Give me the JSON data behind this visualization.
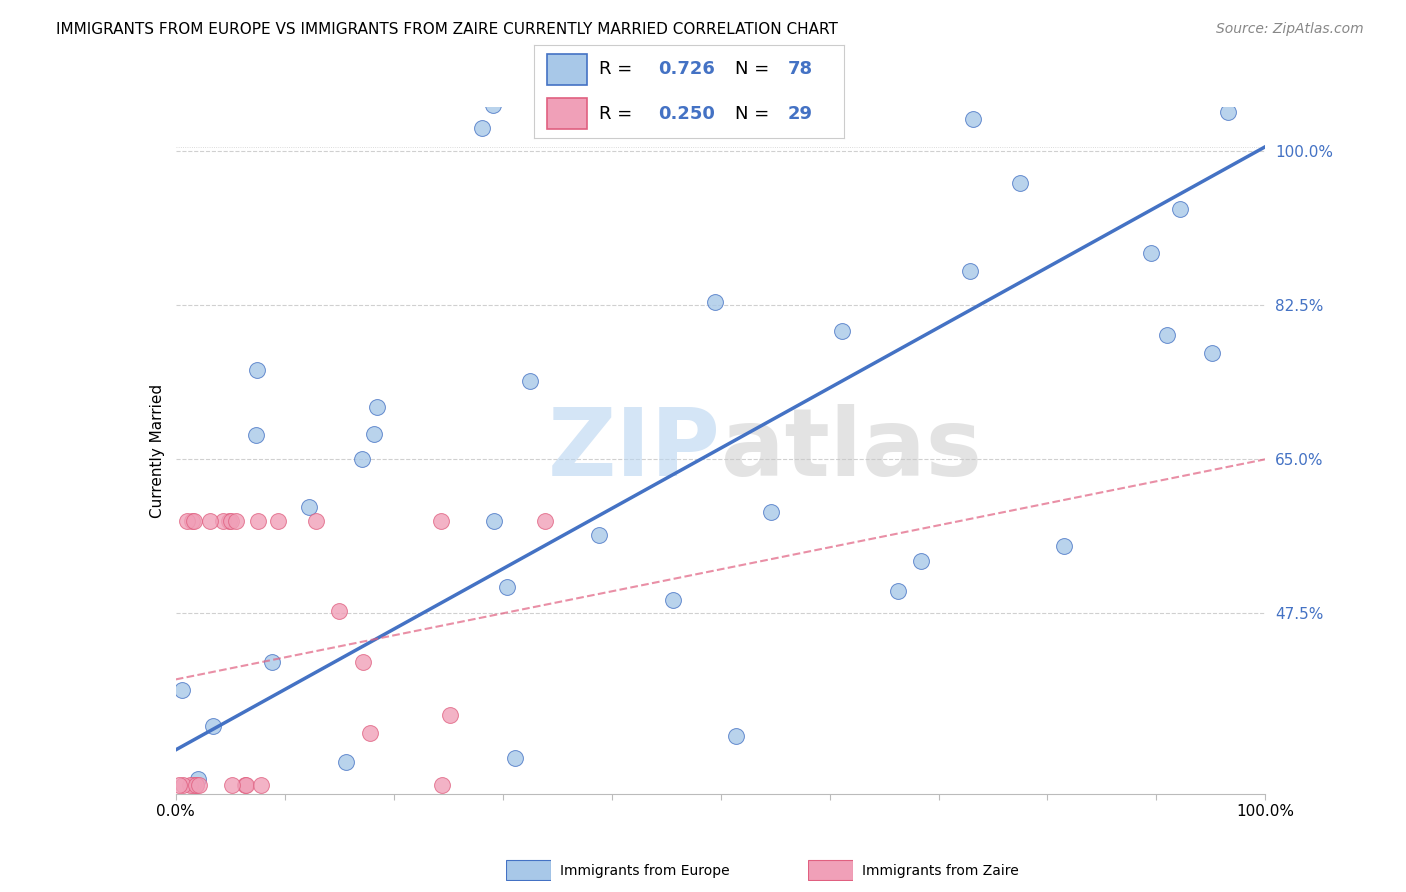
{
  "title": "IMMIGRANTS FROM EUROPE VS IMMIGRANTS FROM ZAIRE CURRENTLY MARRIED CORRELATION CHART",
  "source": "Source: ZipAtlas.com",
  "ylabel": "Currently Married",
  "legend_label1": "Immigrants from Europe",
  "legend_label2": "Immigrants from Zaire",
  "R1": 0.726,
  "N1": 78,
  "R2": 0.25,
  "N2": 29,
  "xlim": [
    0.0,
    1.0
  ],
  "ylim": [
    0.27,
    1.05
  ],
  "yticks": [
    0.475,
    0.65,
    0.825,
    1.0
  ],
  "ytick_labels": [
    "47.5%",
    "65.0%",
    "82.5%",
    "100.0%"
  ],
  "xtick_pos": [
    0.0,
    0.1,
    0.2,
    0.3,
    0.4,
    0.5,
    0.6,
    0.7,
    0.8,
    0.9,
    1.0
  ],
  "xtick_labels": [
    "0.0%",
    "",
    "",
    "",
    "",
    "",
    "",
    "",
    "",
    "",
    "100.0%"
  ],
  "color_europe": "#a8c8e8",
  "color_zaire": "#f0a0b8",
  "edge_europe": "#4472c4",
  "edge_zaire": "#e06080",
  "trendline_europe_color": "#4472c4",
  "trendline_zaire_color": "#e06080",
  "background_color": "#ffffff",
  "grid_color": "#d0d0d0",
  "trend_eu_x0": 0.0,
  "trend_eu_y0": 0.32,
  "trend_eu_x1": 1.0,
  "trend_eu_y1": 1.005,
  "trend_za_x0": 0.0,
  "trend_za_y0": 0.4,
  "trend_za_x1": 1.0,
  "trend_za_y1": 0.65,
  "watermark_zip_color": "#b8d4f0",
  "watermark_atlas_color": "#c8c8c8",
  "title_fontsize": 11,
  "source_fontsize": 10,
  "tick_fontsize": 11,
  "legend_fontsize": 13
}
